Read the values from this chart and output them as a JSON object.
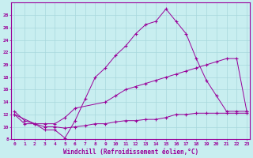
{
  "xlabel": "Windchill (Refroidissement éolien,°C)",
  "bg_color": "#c8eef0",
  "grid_color": "#a8d8dc",
  "line_color": "#990099",
  "x_ticks": [
    0,
    1,
    2,
    3,
    4,
    5,
    6,
    7,
    8,
    9,
    10,
    11,
    12,
    13,
    14,
    15,
    16,
    17,
    18,
    19,
    20,
    21,
    22,
    23
  ],
  "ylim": [
    8,
    30
  ],
  "yticks": [
    8,
    10,
    12,
    14,
    16,
    18,
    20,
    22,
    24,
    26,
    28
  ],
  "line1_x": [
    0,
    1,
    2,
    3,
    4,
    5,
    6,
    7,
    8,
    9,
    10,
    11,
    12,
    13,
    14,
    15,
    16,
    17,
    18,
    19,
    20,
    21,
    22,
    23
  ],
  "line1_y": [
    12.5,
    11.0,
    10.5,
    9.5,
    9.5,
    8.2,
    11.0,
    14.5,
    18.0,
    19.5,
    21.5,
    23.0,
    25.0,
    26.5,
    27.0,
    29.0,
    27.0,
    25.0,
    21.0,
    17.5,
    15.0,
    12.5,
    12.5,
    12.5
  ],
  "line2_x": [
    0,
    2,
    3,
    4,
    5,
    6,
    9,
    10,
    11,
    12,
    13,
    14,
    15,
    16,
    17,
    18,
    19,
    20,
    21,
    22,
    23
  ],
  "line2_y": [
    12.0,
    10.5,
    10.5,
    10.5,
    11.5,
    13.0,
    14.0,
    15.0,
    16.0,
    16.5,
    17.0,
    17.5,
    18.0,
    18.5,
    19.0,
    19.5,
    20.0,
    20.5,
    21.0,
    21.0,
    12.5
  ],
  "line3_x": [
    0,
    1,
    2,
    3,
    4,
    5,
    6,
    7,
    8,
    9,
    10,
    11,
    12,
    13,
    14,
    15,
    16,
    17,
    18,
    19,
    20,
    21,
    22,
    23
  ],
  "line3_y": [
    12.0,
    10.5,
    10.5,
    10.0,
    10.0,
    9.8,
    10.0,
    10.2,
    10.5,
    10.5,
    10.8,
    11.0,
    11.0,
    11.2,
    11.2,
    11.5,
    12.0,
    12.0,
    12.2,
    12.2,
    12.2,
    12.2,
    12.2,
    12.2
  ]
}
